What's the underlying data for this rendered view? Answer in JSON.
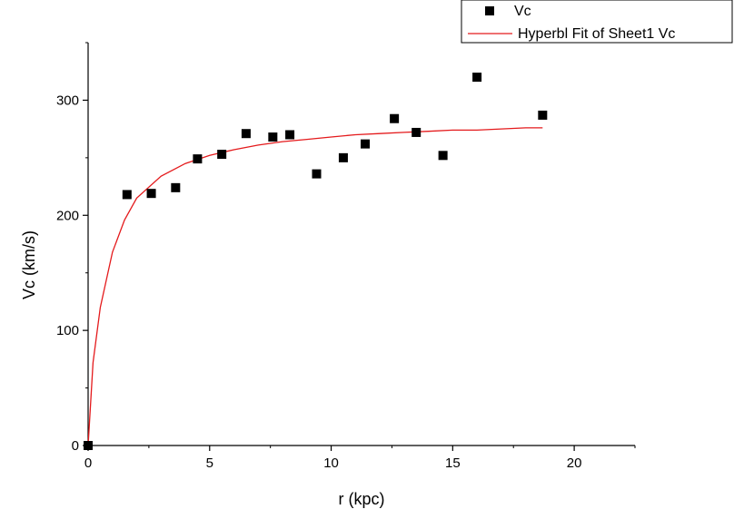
{
  "chart_data": {
    "type": "scatter",
    "xlabel": "r (kpc)",
    "ylabel": "Vc (km/s)",
    "xlim": [
      0,
      22.5
    ],
    "ylim": [
      0,
      350
    ],
    "xticks": [
      0,
      5,
      10,
      15,
      20
    ],
    "yticks": [
      0,
      100,
      200,
      300
    ],
    "x_tick_labels": [
      "0",
      "5",
      "10",
      "15",
      "20"
    ],
    "y_tick_labels": [
      "0",
      "100",
      "200",
      "300"
    ],
    "grid": false,
    "legend_position": "top-right",
    "series": [
      {
        "name": "Vc",
        "kind": "scatter",
        "marker": "square",
        "color": "#000000",
        "x": [
          0,
          1.6,
          2.6,
          3.6,
          4.5,
          5.5,
          6.5,
          7.6,
          8.3,
          9.4,
          10.5,
          11.4,
          12.6,
          13.5,
          14.6,
          16.0,
          18.7
        ],
        "y": [
          0,
          218,
          219,
          224,
          249,
          253,
          271,
          268,
          270,
          236,
          250,
          262,
          284,
          272,
          252,
          320,
          287
        ]
      },
      {
        "name": "Hyperbl Fit of Sheet1 Vc",
        "kind": "line",
        "color": "#e41a1c",
        "x": [
          0,
          0.2,
          0.5,
          1.0,
          1.5,
          2.0,
          3.0,
          4.0,
          5.0,
          6.0,
          7.0,
          8.0,
          9.0,
          10.0,
          11.0,
          12.0,
          13.0,
          14.0,
          15.0,
          16.0,
          17.0,
          18.0,
          18.7
        ],
        "y": [
          0,
          72,
          120,
          168,
          196,
          215,
          234,
          245,
          252,
          257,
          261,
          264,
          266,
          268,
          270,
          271,
          272,
          273,
          274,
          274,
          275,
          276,
          276
        ]
      }
    ]
  }
}
